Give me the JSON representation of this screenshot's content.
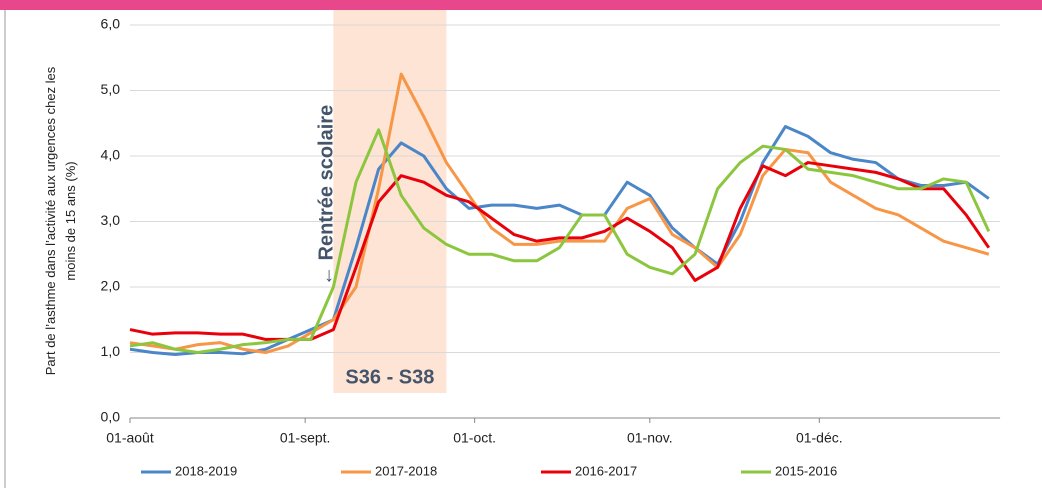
{
  "chart_data": {
    "type": "line",
    "ylabel": [
      "Part de l’asthme dans l’activité  aux urgences chez les",
      "moins de 15 ans (%)"
    ],
    "x": [
      0,
      4,
      8,
      12,
      16,
      20,
      24,
      28,
      32,
      36,
      40,
      44,
      48,
      52,
      56,
      60,
      64,
      68,
      72,
      76,
      80,
      84,
      88,
      92,
      96,
      100,
      104,
      108,
      112,
      116,
      120,
      124,
      128,
      132,
      136,
      140,
      144,
      148,
      152
    ],
    "xlim": [
      0,
      154
    ],
    "xticks": [
      {
        "value": 0,
        "label": "01-août"
      },
      {
        "value": 31,
        "label": "01-sept."
      },
      {
        "value": 61,
        "label": "01-oct."
      },
      {
        "value": 92,
        "label": "01-nov."
      },
      {
        "value": 122,
        "label": "01-déc."
      }
    ],
    "ylim": [
      0,
      6
    ],
    "yticks": [
      {
        "value": 0,
        "label": "0,0"
      },
      {
        "value": 1,
        "label": "1,0"
      },
      {
        "value": 2,
        "label": "2,0"
      },
      {
        "value": 3,
        "label": "3,0"
      },
      {
        "value": 4,
        "label": "4,0"
      },
      {
        "value": 5,
        "label": "5,0"
      },
      {
        "value": 6,
        "label": "6,0"
      }
    ],
    "grid": true,
    "shade": {
      "xlim": [
        36,
        56
      ],
      "label": "S36 - S38",
      "color": "#fde4d4"
    },
    "annotation": "← Rentrée scolaire",
    "legend": "bottom",
    "series": [
      {
        "name": "2018-2019",
        "color": "#4a86c8",
        "values": [
          1.05,
          1.0,
          0.97,
          1.0,
          1.0,
          0.98,
          1.05,
          1.2,
          1.35,
          1.5,
          2.6,
          3.8,
          4.2,
          4.0,
          3.5,
          3.2,
          3.25,
          3.25,
          3.2,
          3.25,
          3.1,
          3.1,
          3.6,
          3.4,
          2.9,
          2.6,
          2.35,
          3.0,
          3.9,
          4.45,
          4.3,
          4.05,
          3.95,
          3.9,
          3.65,
          3.55,
          3.55,
          3.6,
          3.35
        ]
      },
      {
        "name": "2017-2018",
        "color": "#f79646",
        "values": [
          1.15,
          1.1,
          1.05,
          1.12,
          1.15,
          1.05,
          1.0,
          1.1,
          1.3,
          1.5,
          2.0,
          3.5,
          5.25,
          4.6,
          3.9,
          3.4,
          2.9,
          2.65,
          2.65,
          2.7,
          2.7,
          2.7,
          3.2,
          3.35,
          2.8,
          2.6,
          2.3,
          2.8,
          3.7,
          4.1,
          4.05,
          3.6,
          3.4,
          3.2,
          3.1,
          2.9,
          2.7,
          2.6,
          2.5
        ]
      },
      {
        "name": "2016-2017",
        "color": "#e8000b",
        "values": [
          1.35,
          1.28,
          1.3,
          1.3,
          1.28,
          1.28,
          1.2,
          1.2,
          1.2,
          1.35,
          2.3,
          3.3,
          3.7,
          3.6,
          3.4,
          3.3,
          3.05,
          2.8,
          2.7,
          2.75,
          2.75,
          2.85,
          3.05,
          2.85,
          2.6,
          2.1,
          2.3,
          3.2,
          3.85,
          3.7,
          3.9,
          3.85,
          3.8,
          3.75,
          3.65,
          3.5,
          3.5,
          3.1,
          2.6
        ]
      },
      {
        "name": "2015-2016",
        "color": "#8cc63f",
        "values": [
          1.1,
          1.15,
          1.05,
          1.0,
          1.05,
          1.12,
          1.15,
          1.2,
          1.2,
          2.0,
          3.6,
          4.4,
          3.4,
          2.9,
          2.65,
          2.5,
          2.5,
          2.4,
          2.4,
          2.6,
          3.1,
          3.1,
          2.5,
          2.3,
          2.2,
          2.5,
          3.5,
          3.9,
          4.15,
          4.1,
          3.8,
          3.75,
          3.7,
          3.6,
          3.5,
          3.5,
          3.65,
          3.6,
          2.85
        ]
      }
    ]
  }
}
